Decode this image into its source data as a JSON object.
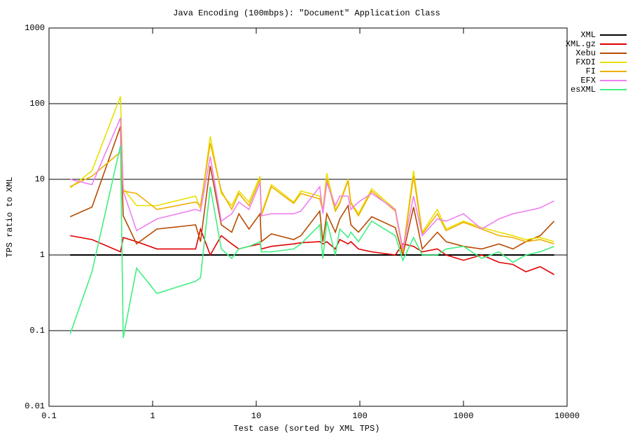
{
  "chart_data": {
    "type": "line",
    "title": "Java Encoding (100mbps): \"Document\" Application Class",
    "x_label": "Test case (sorted by XML TPS)",
    "y_label": "TPS ratio to XML",
    "x_scale": "log",
    "y_scale": "log",
    "grid": true,
    "legend": "top-right",
    "xlim": [
      0.1,
      10000
    ],
    "ylim": [
      0.01,
      1000
    ],
    "xticks": [
      0.1,
      1,
      10,
      100,
      1000,
      10000
    ],
    "yticks": [
      0.01,
      0.1,
      1,
      10,
      100,
      1000
    ],
    "x": [
      0.16,
      0.26,
      0.49,
      0.52,
      0.7,
      1.1,
      2.6,
      2.9,
      3.6,
      4.6,
      5.8,
      6.8,
      8.5,
      10.9,
      11.2,
      14,
      23,
      27,
      41,
      44,
      48,
      58,
      64,
      77,
      82,
      97,
      130,
      220,
      260,
      330,
      400,
      560,
      680,
      1000,
      1500,
      2200,
      3000,
      4000,
      5500,
      7500
    ],
    "series": [
      {
        "name": "XML",
        "color": "#000000",
        "values": [
          1,
          1,
          1,
          1,
          1,
          1,
          1,
          1,
          1,
          1,
          1,
          1,
          1,
          1,
          1,
          1,
          1,
          1,
          1,
          1,
          1,
          1,
          1,
          1,
          1,
          1,
          1,
          1,
          1,
          1,
          1,
          1,
          1,
          1,
          1,
          1,
          1,
          1,
          1,
          1
        ]
      },
      {
        "name": "XML.gz",
        "color": "#e00000",
        "values": [
          1.8,
          1.6,
          1.1,
          1.7,
          1.5,
          1.2,
          1.2,
          2.2,
          1.0,
          1.8,
          1.4,
          1.2,
          1.3,
          1.4,
          1.2,
          1.3,
          1.4,
          1.45,
          1.5,
          1.4,
          1.5,
          1.2,
          1.6,
          1.4,
          1.5,
          1.2,
          1.1,
          1.0,
          1.4,
          1.3,
          1.1,
          1.2,
          1.0,
          0.85,
          1.0,
          0.8,
          0.75,
          0.6,
          0.7,
          0.55
        ]
      },
      {
        "name": "Xebu",
        "color": "#b84a00",
        "values": [
          3.2,
          4.3,
          50,
          3.3,
          1.4,
          2.2,
          2.5,
          1.5,
          15,
          2.5,
          2.0,
          3.5,
          2.2,
          3.5,
          1.5,
          1.9,
          1.6,
          1.8,
          3.8,
          1.5,
          3.5,
          2.0,
          3.0,
          4.5,
          2.5,
          2.0,
          3.2,
          2.3,
          1.0,
          4.3,
          1.2,
          2.0,
          1.5,
          1.3,
          1.2,
          1.4,
          1.2,
          1.5,
          1.8,
          2.8
        ]
      },
      {
        "name": "FXDI",
        "color": "#e8e000",
        "values": [
          7.7,
          13,
          125,
          7.5,
          4.5,
          4.5,
          6,
          4,
          37,
          6.5,
          4.5,
          7,
          5,
          11,
          3.5,
          8.5,
          5,
          7,
          6,
          4,
          12,
          4,
          5,
          10,
          5,
          3.5,
          7.5,
          4,
          1.1,
          13,
          2.0,
          4,
          2.2,
          2.8,
          2.3,
          2.0,
          1.8,
          1.6,
          1.7,
          1.5
        ]
      },
      {
        "name": "FI",
        "color": "#f0b000",
        "values": [
          8,
          11,
          23,
          7,
          6.5,
          4,
          5,
          4.5,
          30,
          7,
          4,
          6.5,
          4.5,
          10,
          3.3,
          8,
          4.8,
          6.5,
          5.5,
          3.8,
          10,
          3.8,
          4.8,
          9.5,
          4.8,
          3.3,
          7,
          3.8,
          1.1,
          11,
          1.9,
          3.5,
          2.1,
          2.7,
          2.2,
          1.8,
          1.7,
          1.5,
          1.6,
          1.4
        ]
      },
      {
        "name": "EFX",
        "color": "#f080f0",
        "values": [
          10,
          8.5,
          65,
          7,
          2.1,
          3.0,
          4.0,
          3.8,
          20,
          2.8,
          3.5,
          5,
          4,
          9,
          3.3,
          3.5,
          3.5,
          3.8,
          8,
          3.5,
          9,
          4.5,
          6,
          6,
          4,
          5,
          6.5,
          4,
          1.2,
          6,
          1.8,
          3.0,
          2.8,
          3.5,
          2.2,
          3.0,
          3.5,
          3.8,
          4.2,
          5.2
        ]
      },
      {
        "name": "esXML",
        "color": "#40f080",
        "values": [
          0.09,
          0.6,
          28,
          0.08,
          0.67,
          0.31,
          0.45,
          0.5,
          8,
          1.2,
          0.9,
          1.2,
          1.3,
          1.5,
          1.1,
          1.1,
          1.2,
          1.4,
          2.5,
          0.9,
          2.8,
          1.0,
          2.2,
          1.7,
          2.0,
          1.5,
          2.8,
          1.8,
          0.85,
          1.7,
          1.0,
          1.0,
          1.2,
          1.3,
          0.9,
          1.1,
          0.8,
          1.0,
          1.1,
          1.3
        ]
      }
    ]
  }
}
